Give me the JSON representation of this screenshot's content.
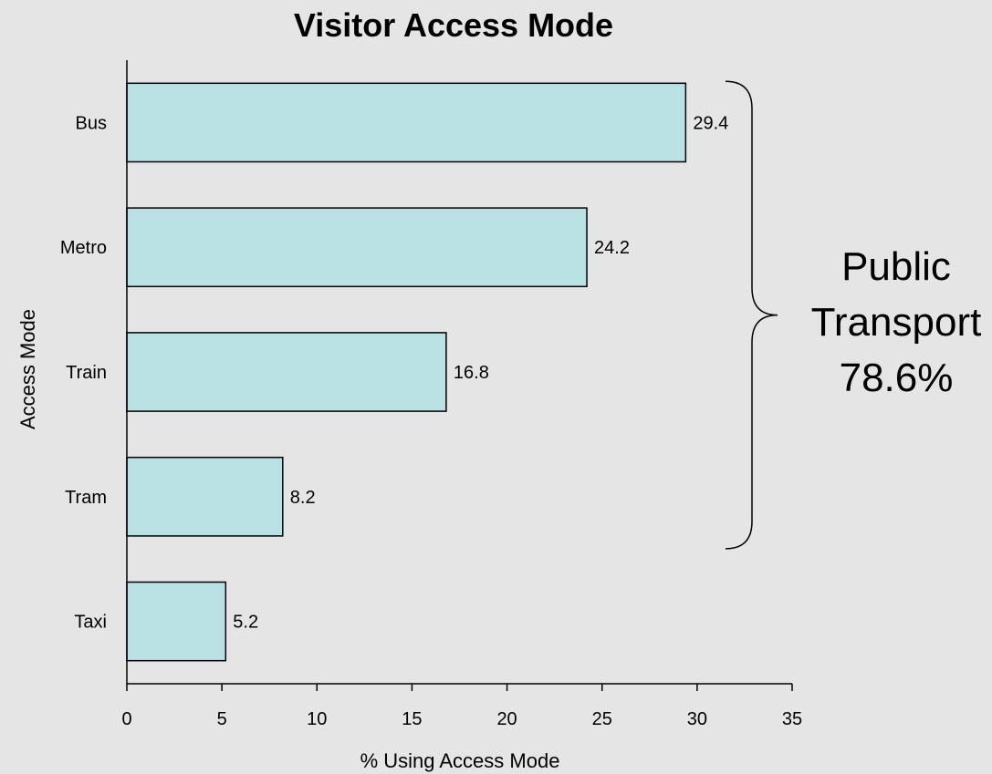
{
  "chart_data": {
    "type": "bar",
    "orientation": "horizontal",
    "title": "Visitor Access Mode",
    "xlabel": "% Using Access Mode",
    "ylabel": "Access Mode",
    "categories": [
      "Bus",
      "Metro",
      "Train",
      "Tram",
      "Taxi"
    ],
    "values": [
      29.4,
      24.2,
      16.8,
      8.2,
      5.2
    ],
    "data_labels": [
      "29.4",
      "24.2",
      "16.8",
      "8.2",
      "5.2"
    ],
    "xlim": [
      0,
      35
    ],
    "xticks": [
      0,
      5,
      10,
      15,
      20,
      25,
      30,
      35
    ],
    "xtick_labels": [
      "0",
      "5",
      "10",
      "15",
      "20",
      "25",
      "30",
      "35"
    ],
    "grid": false,
    "legend": "none",
    "bar_color": "#b9e0e3",
    "annotation": {
      "lines": [
        "Public",
        "Transport",
        "78.6%"
      ],
      "brace_spans": [
        "Bus",
        "Metro",
        "Train",
        "Tram"
      ]
    }
  }
}
